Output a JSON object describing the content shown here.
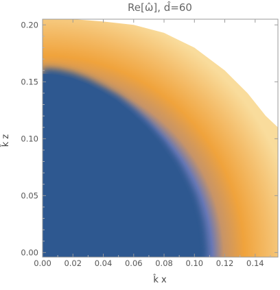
{
  "chart_data": {
    "type": "heatmap",
    "title": "Re[ω̂], d̂=60",
    "xlabel": "k̂ x",
    "ylabel": "k̂ z",
    "xlim": [
      0.0,
      0.155
    ],
    "ylim": [
      -0.004,
      0.205
    ],
    "x_ticks": [
      0.0,
      0.02,
      0.04,
      0.06,
      0.08,
      0.1,
      0.12,
      0.14
    ],
    "x_tick_labels": [
      "0.00",
      "0.02",
      "0.04",
      "0.06",
      "0.08",
      "0.10",
      "0.12",
      "0.14"
    ],
    "y_ticks": [
      0.0,
      0.05,
      0.1,
      0.15,
      0.2
    ],
    "y_tick_labels": [
      "0.00",
      "0.05",
      "0.10",
      "0.15",
      "0.20"
    ],
    "grid": false,
    "legend": "none",
    "colormap": {
      "low": "#2e5890",
      "mid": "#f0a33c",
      "high": "#f9dc9c",
      "empty": "#ffffff"
    },
    "regions": [
      {
        "label": "blue core (Re ≈ 0)",
        "boundary": [
          [
            0.0,
            0.162
          ],
          [
            0.01,
            0.161
          ],
          [
            0.02,
            0.158
          ],
          [
            0.03,
            0.153
          ],
          [
            0.04,
            0.146
          ],
          [
            0.05,
            0.138
          ],
          [
            0.06,
            0.127
          ],
          [
            0.07,
            0.114
          ],
          [
            0.08,
            0.098
          ],
          [
            0.09,
            0.078
          ],
          [
            0.1,
            0.05
          ],
          [
            0.105,
            0.025
          ],
          [
            0.107,
            0.0
          ]
        ]
      },
      {
        "label": "orange band outer edge",
        "boundary": [
          [
            0.0,
            0.205
          ],
          [
            0.02,
            0.205
          ],
          [
            0.04,
            0.203
          ],
          [
            0.06,
            0.2
          ],
          [
            0.08,
            0.193
          ],
          [
            0.1,
            0.18
          ],
          [
            0.12,
            0.16
          ],
          [
            0.135,
            0.14
          ],
          [
            0.147,
            0.12
          ],
          [
            0.155,
            0.11
          ]
        ]
      }
    ]
  }
}
